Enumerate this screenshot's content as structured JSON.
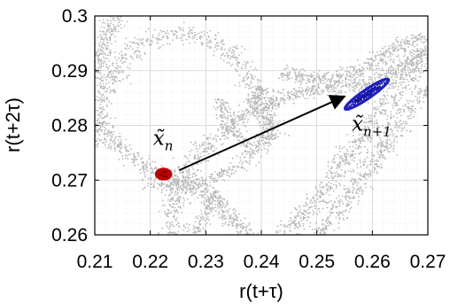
{
  "chart_data": {
    "type": "scatter",
    "title": "",
    "xlabel": "r(t+τ)",
    "ylabel": "r(t+2τ)",
    "xlim": [
      0.21,
      0.27
    ],
    "ylim": [
      0.26,
      0.3
    ],
    "xticks": [
      0.21,
      0.22,
      0.23,
      0.24,
      0.25,
      0.26,
      0.27
    ],
    "yticks": [
      0.26,
      0.27,
      0.28,
      0.29,
      0.3
    ],
    "xtick_labels": [
      "0.21",
      "0.22",
      "0.23",
      "0.24",
      "0.25",
      "0.26",
      "0.27"
    ],
    "ytick_labels": [
      "0.26",
      "0.27",
      "0.28",
      "0.29",
      "0.3"
    ],
    "grid": true,
    "attractor_color": "#b8b8b8",
    "circle_color": "#c00000",
    "ellipse_color": "#1f1fbf",
    "arrow_color": "#000000",
    "annotations": [
      {
        "name": "x_n",
        "base": "x̃",
        "subscript": "n"
      },
      {
        "name": "x_n_plus_1",
        "base": "x̃",
        "subscript": "n+1"
      }
    ],
    "state_n": {
      "x": 0.2224,
      "y": 0.2711,
      "radius_x": 0.0013,
      "radius_y": 0.0009
    },
    "state_n_plus_1": {
      "x": 0.259,
      "y": 0.2857,
      "semi_major_x": 0.0039,
      "semi_major_y": 0.0027,
      "semi_minor": 0.0008
    },
    "arrow": {
      "from": [
        0.2252,
        0.2718
      ],
      "to": [
        0.255,
        0.2853
      ]
    }
  }
}
